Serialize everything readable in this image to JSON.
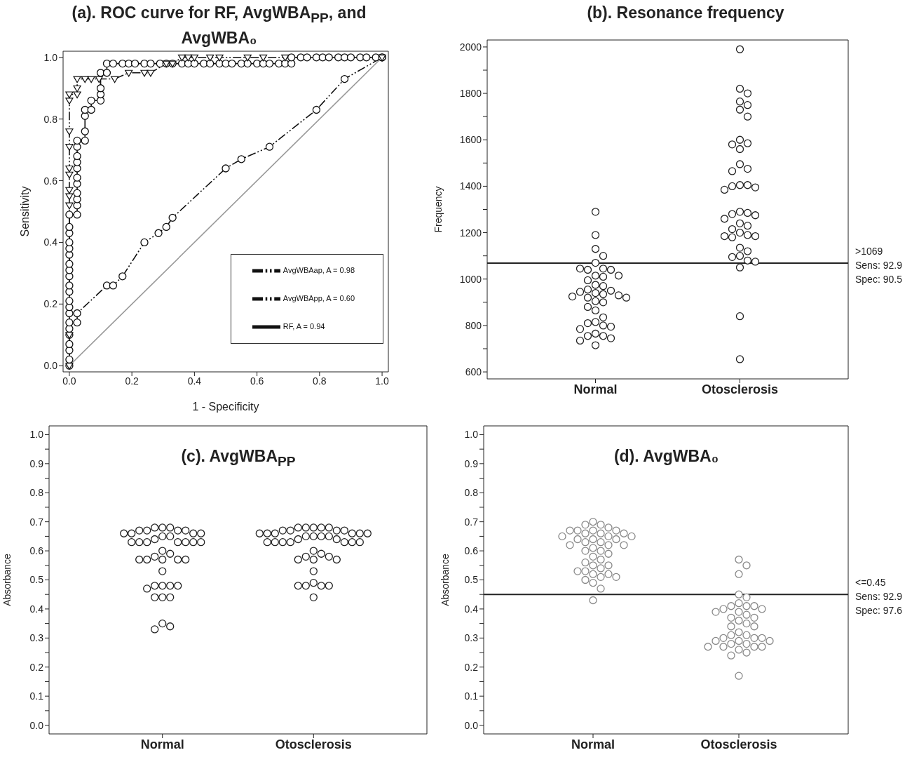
{
  "chart_data": [
    {
      "type": "line",
      "title": "(a). ROC curve for RF, AvgWBA$_{PP}$, and AvgWBA₀",
      "xlabel": "1 - Specificity",
      "ylabel": "Sensitivity",
      "xlim": [
        -0.02,
        1.02
      ],
      "ylim": [
        -0.02,
        1.02
      ],
      "xticks": [
        {
          "value": 0,
          "label": "0.0"
        },
        {
          "value": 0.2,
          "label": "0.2"
        },
        {
          "value": 0.4,
          "label": "0.4"
        },
        {
          "value": 0.6,
          "label": "0.6"
        },
        {
          "value": 0.8,
          "label": "0.8"
        },
        {
          "value": 1,
          "label": "1.0"
        }
      ],
      "yticks": [
        {
          "value": 0,
          "label": "0.0"
        },
        {
          "value": 0.2,
          "label": "0.2"
        },
        {
          "value": 0.4,
          "label": "0.4"
        },
        {
          "value": 0.6,
          "label": "0.6"
        },
        {
          "value": 0.8,
          "label": "0.8"
        },
        {
          "value": 1,
          "label": "1.0"
        }
      ],
      "legend": "bottom right",
      "series": [
        {
          "type": "line",
          "color": "#999999",
          "marker": "none",
          "line_style": "solid",
          "x": [
            0,
            1
          ],
          "values": [
            0,
            1
          ]
        },
        {
          "name": "AvgWBApp, A = 0.60",
          "color": "#111111",
          "marker": "circle",
          "line_style": "dashed",
          "x": [
            0.025,
            0.025,
            0.12,
            0.14,
            0.17,
            0.24,
            0.285,
            0.31,
            0.33,
            0.5,
            0.55,
            0.64,
            0.79,
            0.88,
            1.0
          ],
          "values": [
            0.14,
            0.17,
            0.26,
            0.26,
            0.29,
            0.4,
            0.43,
            0.45,
            0.48,
            0.64,
            0.67,
            0.71,
            0.83,
            0.93,
            1.0
          ]
        },
        {
          "name": "RF, A = 0.94",
          "color": "#111111",
          "marker": "circle",
          "line_style": "solid",
          "x": [
            0,
            0,
            0,
            0,
            0,
            0,
            0,
            0,
            0,
            0,
            0,
            0,
            0,
            0,
            0,
            0,
            0,
            0,
            0,
            0,
            0,
            0.025,
            0.025,
            0.025,
            0.025,
            0.025,
            0.025,
            0.025,
            0.025,
            0.025,
            0.025,
            0.025,
            0.05,
            0.05,
            0.05,
            0.05,
            0.07,
            0.07,
            0.1,
            0.1,
            0.1,
            0.1,
            0.12,
            0.12,
            0.14,
            0.17,
            0.19,
            0.21,
            0.24,
            0.26,
            0.29,
            0.31,
            0.33,
            0.36,
            0.38,
            0.4,
            0.43,
            0.45,
            0.48,
            0.5,
            0.52,
            0.55,
            0.57,
            0.6,
            0.62,
            0.64,
            0.67,
            0.69,
            0.71,
            0.71,
            0.74,
            0.76,
            0.79,
            0.81,
            0.83,
            0.86,
            0.88,
            0.9,
            0.93,
            0.95,
            0.98,
            1.0
          ],
          "values": [
            0,
            0.02,
            0.05,
            0.07,
            0.1,
            0.12,
            0.14,
            0.17,
            0.19,
            0.21,
            0.24,
            0.26,
            0.29,
            0.31,
            0.33,
            0.36,
            0.38,
            0.4,
            0.43,
            0.45,
            0.49,
            0.49,
            0.52,
            0.54,
            0.56,
            0.59,
            0.61,
            0.64,
            0.66,
            0.68,
            0.71,
            0.73,
            0.73,
            0.76,
            0.81,
            0.83,
            0.83,
            0.86,
            0.86,
            0.88,
            0.9,
            0.95,
            0.95,
            0.98,
            0.98,
            0.98,
            0.98,
            0.98,
            0.98,
            0.98,
            0.98,
            0.98,
            0.98,
            0.98,
            0.98,
            0.98,
            0.98,
            0.98,
            0.98,
            0.98,
            0.98,
            0.98,
            0.98,
            0.98,
            0.98,
            0.98,
            0.98,
            0.98,
            0.98,
            1.0,
            1.0,
            1.0,
            1.0,
            1.0,
            1.0,
            1.0,
            1.0,
            1.0,
            1.0,
            1.0,
            1.0,
            1.0
          ]
        },
        {
          "name": "AvgWBAap, A = 0.98",
          "color": "#111111",
          "marker": "triangle",
          "line_style": "dashed",
          "x": [
            0,
            0,
            0,
            0,
            0,
            0,
            0,
            0,
            0,
            0,
            0,
            0.025,
            0.025,
            0.025,
            0.05,
            0.07,
            0.095,
            0.145,
            0.19,
            0.24,
            0.26,
            0.31,
            0.33,
            0.36,
            0.38,
            0.4,
            0.45,
            0.48,
            0.57,
            0.62,
            0.69,
            1.0
          ],
          "values": [
            0,
            0.1,
            0.52,
            0.55,
            0.57,
            0.62,
            0.64,
            0.71,
            0.76,
            0.86,
            0.88,
            0.88,
            0.9,
            0.93,
            0.93,
            0.93,
            0.93,
            0.93,
            0.95,
            0.95,
            0.95,
            0.98,
            0.98,
            1.0,
            1.0,
            1.0,
            1.0,
            1.0,
            1.0,
            1.0,
            1.0,
            1.0
          ]
        }
      ]
    },
    {
      "type": "scatter",
      "title": "(b). Resonance frequency",
      "ylabel": "Frequency",
      "categories": [
        "Normal",
        "Otosclerosis"
      ],
      "ylim": [
        570,
        2030
      ],
      "yticks": [
        600,
        {
          "value": 700,
          "label": null
        },
        800,
        {
          "value": 900,
          "label": null
        },
        1000,
        {
          "value": 1100,
          "label": null
        },
        1200,
        {
          "value": 1300,
          "label": null
        },
        1400,
        {
          "value": 1500,
          "label": null
        },
        1600,
        {
          "value": 1700,
          "label": null
        },
        1800,
        {
          "value": 1900,
          "label": null
        },
        2000
      ],
      "marker": "circle",
      "ref_lines": [
        {
          "axis": "y",
          "value": 1069,
          "label": ">1069\nSens: 92.9\nSpec: 90.5",
          "color": "#222222"
        }
      ],
      "series": [
        {
          "color": "#222222",
          "x": [
            "Normal",
            "Normal",
            "Normal",
            "Normal",
            "Normal",
            "Normal",
            "Normal",
            "Normal",
            "Normal",
            "Normal",
            "Normal",
            "Normal",
            "Normal",
            "Normal",
            "Normal",
            "Normal",
            "Normal",
            "Normal",
            "Normal",
            "Normal",
            "Normal",
            "Normal",
            "Normal",
            "Normal",
            "Normal",
            "Normal",
            "Normal",
            "Normal",
            "Normal",
            "Normal",
            "Normal",
            "Normal",
            "Normal",
            "Normal",
            "Normal",
            "Normal",
            "Normal",
            "Normal",
            "Normal",
            "Normal"
          ],
          "values": [
            1290,
            1190,
            1130,
            1100,
            1070,
            1045,
            1040,
            1040,
            1045,
            1015,
            1010,
            1015,
            995,
            975,
            970,
            955,
            950,
            945,
            940,
            935,
            930,
            925,
            920,
            920,
            905,
            900,
            880,
            865,
            835,
            815,
            810,
            800,
            795,
            785,
            765,
            755,
            755,
            745,
            735,
            715
          ]
        },
        {
          "color": "#222222",
          "x": [
            "Otosclerosis",
            "Otosclerosis",
            "Otosclerosis",
            "Otosclerosis",
            "Otosclerosis",
            "Otosclerosis",
            "Otosclerosis",
            "Otosclerosis",
            "Otosclerosis",
            "Otosclerosis",
            "Otosclerosis",
            "Otosclerosis",
            "Otosclerosis",
            "Otosclerosis",
            "Otosclerosis",
            "Otosclerosis",
            "Otosclerosis",
            "Otosclerosis",
            "Otosclerosis",
            "Otosclerosis",
            "Otosclerosis",
            "Otosclerosis",
            "Otosclerosis",
            "Otosclerosis",
            "Otosclerosis",
            "Otosclerosis",
            "Otosclerosis",
            "Otosclerosis",
            "Otosclerosis",
            "Otosclerosis",
            "Otosclerosis",
            "Otosclerosis",
            "Otosclerosis",
            "Otosclerosis",
            "Otosclerosis",
            "Otosclerosis",
            "Otosclerosis",
            "Otosclerosis",
            "Otosclerosis",
            "Otosclerosis",
            "Otosclerosis"
          ],
          "values": [
            1990,
            1820,
            1800,
            1765,
            1750,
            1730,
            1700,
            1600,
            1585,
            1580,
            1560,
            1495,
            1475,
            1465,
            1405,
            1405,
            1400,
            1395,
            1385,
            1290,
            1285,
            1280,
            1275,
            1260,
            1240,
            1230,
            1215,
            1200,
            1190,
            1185,
            1185,
            1180,
            1135,
            1120,
            1100,
            1095,
            1080,
            1075,
            1050,
            840,
            655
          ]
        }
      ]
    },
    {
      "type": "scatter",
      "title": "(c). AvgWBA$_{PP}$",
      "ylabel": "Absorbance",
      "categories": [
        "Normal",
        "Otosclerosis"
      ],
      "ylim": [
        -0.03,
        1.03
      ],
      "yticks": [
        {
          "value": 0,
          "label": "0.0"
        },
        {
          "value": 0.05,
          "label": null
        },
        {
          "value": 0.1,
          "label": "0.1"
        },
        {
          "value": 0.15,
          "label": null
        },
        {
          "value": 0.2,
          "label": "0.2"
        },
        {
          "value": 0.25,
          "label": null
        },
        {
          "value": 0.3,
          "label": "0.3"
        },
        {
          "value": 0.35,
          "label": null
        },
        {
          "value": 0.4,
          "label": "0.4"
        },
        {
          "value": 0.45,
          "label": null
        },
        {
          "value": 0.5,
          "label": "0.5"
        },
        {
          "value": 0.55,
          "label": null
        },
        {
          "value": 0.6,
          "label": "0.6"
        },
        {
          "value": 0.65,
          "label": null
        },
        {
          "value": 0.7,
          "label": "0.7"
        },
        {
          "value": 0.75,
          "label": null
        },
        {
          "value": 0.8,
          "label": "0.8"
        },
        {
          "value": 0.85,
          "label": null
        },
        {
          "value": 0.9,
          "label": "0.9"
        },
        {
          "value": 0.95,
          "label": null
        },
        {
          "value": 1,
          "label": "1.0"
        }
      ],
      "marker": "circle",
      "series": [
        {
          "color": "#222222",
          "x": [
            "Normal",
            "Normal",
            "Normal",
            "Normal",
            "Normal",
            "Normal",
            "Normal",
            "Normal",
            "Normal",
            "Normal",
            "Normal",
            "Normal",
            "Normal",
            "Normal",
            "Normal",
            "Normal",
            "Normal",
            "Normal",
            "Normal",
            "Normal",
            "Normal",
            "Normal",
            "Normal",
            "Normal",
            "Normal",
            "Normal",
            "Normal",
            "Normal",
            "Normal",
            "Normal",
            "Normal",
            "Normal",
            "Normal",
            "Normal",
            "Normal",
            "Normal",
            "Normal",
            "Normal",
            "Normal",
            "Normal",
            "Normal"
          ],
          "values": [
            0.68,
            0.68,
            0.68,
            0.67,
            0.67,
            0.67,
            0.67,
            0.66,
            0.66,
            0.66,
            0.66,
            0.65,
            0.65,
            0.64,
            0.63,
            0.63,
            0.63,
            0.63,
            0.63,
            0.63,
            0.63,
            0.6,
            0.59,
            0.58,
            0.57,
            0.57,
            0.57,
            0.57,
            0.57,
            0.53,
            0.48,
            0.48,
            0.48,
            0.48,
            0.47,
            0.44,
            0.44,
            0.44,
            0.35,
            0.34,
            0.33
          ]
        },
        {
          "color": "#222222",
          "x": [
            "Otosclerosis",
            "Otosclerosis",
            "Otosclerosis",
            "Otosclerosis",
            "Otosclerosis",
            "Otosclerosis",
            "Otosclerosis",
            "Otosclerosis",
            "Otosclerosis",
            "Otosclerosis",
            "Otosclerosis",
            "Otosclerosis",
            "Otosclerosis",
            "Otosclerosis",
            "Otosclerosis",
            "Otosclerosis",
            "Otosclerosis",
            "Otosclerosis",
            "Otosclerosis",
            "Otosclerosis",
            "Otosclerosis",
            "Otosclerosis",
            "Otosclerosis",
            "Otosclerosis",
            "Otosclerosis",
            "Otosclerosis",
            "Otosclerosis",
            "Otosclerosis",
            "Otosclerosis",
            "Otosclerosis",
            "Otosclerosis",
            "Otosclerosis",
            "Otosclerosis",
            "Otosclerosis",
            "Otosclerosis",
            "Otosclerosis",
            "Otosclerosis",
            "Otosclerosis",
            "Otosclerosis",
            "Otosclerosis",
            "Otosclerosis",
            "Otosclerosis"
          ],
          "values": [
            0.68,
            0.68,
            0.68,
            0.68,
            0.68,
            0.67,
            0.67,
            0.67,
            0.67,
            0.66,
            0.66,
            0.66,
            0.66,
            0.66,
            0.66,
            0.65,
            0.65,
            0.65,
            0.65,
            0.64,
            0.64,
            0.63,
            0.63,
            0.63,
            0.63,
            0.63,
            0.63,
            0.63,
            0.6,
            0.59,
            0.58,
            0.58,
            0.57,
            0.57,
            0.57,
            0.53,
            0.49,
            0.48,
            0.48,
            0.48,
            0.48,
            0.44
          ]
        }
      ]
    },
    {
      "type": "scatter",
      "title": "(d). AvgWBA₀",
      "ylabel": "Absorbance",
      "categories": [
        "Normal",
        "Otosclerosis"
      ],
      "ylim": [
        -0.03,
        1.03
      ],
      "yticks": [
        {
          "value": 0,
          "label": "0.0"
        },
        {
          "value": 0.05,
          "label": null
        },
        {
          "value": 0.1,
          "label": "0.1"
        },
        {
          "value": 0.15,
          "label": null
        },
        {
          "value": 0.2,
          "label": "0.2"
        },
        {
          "value": 0.25,
          "label": null
        },
        {
          "value": 0.3,
          "label": "0.3"
        },
        {
          "value": 0.35,
          "label": null
        },
        {
          "value": 0.4,
          "label": "0.4"
        },
        {
          "value": 0.45,
          "label": null
        },
        {
          "value": 0.5,
          "label": "0.5"
        },
        {
          "value": 0.55,
          "label": null
        },
        {
          "value": 0.6,
          "label": "0.6"
        },
        {
          "value": 0.65,
          "label": null
        },
        {
          "value": 0.7,
          "label": "0.7"
        },
        {
          "value": 0.75,
          "label": null
        },
        {
          "value": 0.8,
          "label": "0.8"
        },
        {
          "value": 0.85,
          "label": null
        },
        {
          "value": 0.9,
          "label": "0.9"
        },
        {
          "value": 0.95,
          "label": null
        },
        {
          "value": 1,
          "label": "1.0"
        }
      ],
      "marker": "circle",
      "ref_lines": [
        {
          "axis": "y",
          "value": 0.45,
          "label": "<=0.45\nSens: 92.9\nSpec: 97.6",
          "color": "#222222"
        }
      ],
      "series": [
        {
          "color": "#888888",
          "x": [
            "Normal",
            "Normal",
            "Normal",
            "Normal",
            "Normal",
            "Normal",
            "Normal",
            "Normal",
            "Normal",
            "Normal",
            "Normal",
            "Normal",
            "Normal",
            "Normal",
            "Normal",
            "Normal",
            "Normal",
            "Normal",
            "Normal",
            "Normal",
            "Normal",
            "Normal",
            "Normal",
            "Normal",
            "Normal",
            "Normal",
            "Normal",
            "Normal",
            "Normal",
            "Normal",
            "Normal",
            "Normal",
            "Normal",
            "Normal",
            "Normal",
            "Normal",
            "Normal",
            "Normal",
            "Normal",
            "Normal",
            "Normal",
            "Normal"
          ],
          "values": [
            0.7,
            0.69,
            0.69,
            0.68,
            0.67,
            0.67,
            0.67,
            0.67,
            0.66,
            0.66,
            0.66,
            0.65,
            0.65,
            0.65,
            0.64,
            0.64,
            0.64,
            0.63,
            0.63,
            0.62,
            0.62,
            0.62,
            0.61,
            0.6,
            0.6,
            0.59,
            0.58,
            0.57,
            0.56,
            0.55,
            0.55,
            0.54,
            0.53,
            0.53,
            0.52,
            0.52,
            0.51,
            0.51,
            0.5,
            0.49,
            0.47,
            0.43
          ]
        },
        {
          "color": "#888888",
          "x": [
            "Otosclerosis",
            "Otosclerosis",
            "Otosclerosis",
            "Otosclerosis",
            "Otosclerosis",
            "Otosclerosis",
            "Otosclerosis",
            "Otosclerosis",
            "Otosclerosis",
            "Otosclerosis",
            "Otosclerosis",
            "Otosclerosis",
            "Otosclerosis",
            "Otosclerosis",
            "Otosclerosis",
            "Otosclerosis",
            "Otosclerosis",
            "Otosclerosis",
            "Otosclerosis",
            "Otosclerosis",
            "Otosclerosis",
            "Otosclerosis",
            "Otosclerosis",
            "Otosclerosis",
            "Otosclerosis",
            "Otosclerosis",
            "Otosclerosis",
            "Otosclerosis",
            "Otosclerosis",
            "Otosclerosis",
            "Otosclerosis",
            "Otosclerosis",
            "Otosclerosis",
            "Otosclerosis",
            "Otosclerosis",
            "Otosclerosis",
            "Otosclerosis",
            "Otosclerosis",
            "Otosclerosis"
          ],
          "values": [
            0.57,
            0.55,
            0.52,
            0.45,
            0.44,
            0.42,
            0.41,
            0.41,
            0.41,
            0.4,
            0.4,
            0.39,
            0.39,
            0.38,
            0.37,
            0.37,
            0.36,
            0.35,
            0.34,
            0.34,
            0.32,
            0.31,
            0.31,
            0.3,
            0.3,
            0.3,
            0.29,
            0.29,
            0.29,
            0.28,
            0.28,
            0.27,
            0.27,
            0.27,
            0.27,
            0.26,
            0.25,
            0.24,
            0.17
          ]
        }
      ]
    }
  ]
}
